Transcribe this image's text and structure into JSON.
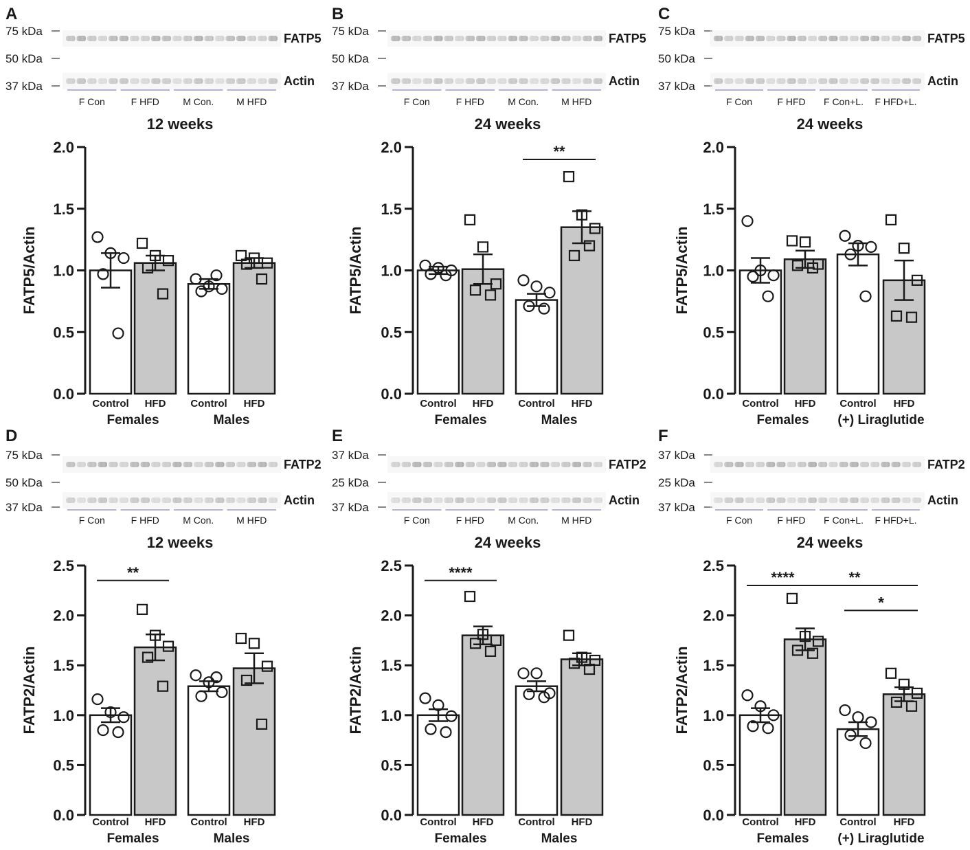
{
  "colors": {
    "control_fill": "#ffffff",
    "hfd_fill": "#c8c8c8",
    "ink": "#1a1a1a",
    "marker_bracket": "#9a9ac8"
  },
  "panels": [
    {
      "letter": "A",
      "title": "12 weeks",
      "protein": "FATP5",
      "blot_markers": [
        "75 kDa",
        "50 kDa",
        "37 kDa"
      ],
      "blot_bands": [
        "FATP5",
        "Actin"
      ],
      "lane_groups": [
        "F Con",
        "F HFD",
        "M Con.",
        "M HFD"
      ],
      "group_labels": [
        "Females",
        "Males"
      ]
    },
    {
      "letter": "B",
      "title": "24 weeks",
      "protein": "FATP5",
      "blot_markers": [
        "75 kDa",
        "50 kDa",
        "37 kDa"
      ],
      "blot_bands": [
        "FATP5",
        "Actin"
      ],
      "lane_groups": [
        "F Con",
        "F HFD",
        "M Con.",
        "M HFD"
      ],
      "group_labels": [
        "Females",
        "Males"
      ]
    },
    {
      "letter": "C",
      "title": "24 weeks",
      "protein": "FATP5",
      "blot_markers": [
        "75 kDa",
        "50 kDa",
        "37 kDa"
      ],
      "blot_bands": [
        "FATP5",
        "Actin"
      ],
      "lane_groups": [
        "F Con",
        "F HFD",
        "F Con+L.",
        "F HFD+L."
      ],
      "group_labels": [
        "Females",
        "(+) Liraglutide"
      ]
    },
    {
      "letter": "D",
      "title": "12 weeks",
      "protein": "FATP2",
      "blot_markers": [
        "75 kDa",
        "50 kDa",
        "37 kDa"
      ],
      "blot_bands": [
        "FATP2",
        "Actin"
      ],
      "lane_groups": [
        "F Con",
        "F HFD",
        "M Con.",
        "M HFD"
      ],
      "group_labels": [
        "Females",
        "Males"
      ]
    },
    {
      "letter": "E",
      "title": "24 weeks",
      "protein": "FATP2",
      "blot_markers": [
        "37 kDa",
        "25 kDa",
        "37 kDa"
      ],
      "blot_bands": [
        "FATP2",
        "Actin"
      ],
      "lane_groups": [
        "F Con",
        "F HFD",
        "M Con.",
        "M HFD"
      ],
      "group_labels": [
        "Females",
        "Males"
      ]
    },
    {
      "letter": "F",
      "title": "24 weeks",
      "protein": "FATP2",
      "blot_markers": [
        "37 kDa",
        "25 kDa",
        "37 kDa"
      ],
      "blot_bands": [
        "FATP2",
        "Actin"
      ],
      "lane_groups": [
        "F Con",
        "F HFD",
        "F Con+L.",
        "F HFD+L."
      ],
      "group_labels": [
        "Females",
        "(+) Liraglutide"
      ]
    }
  ],
  "chart_data": [
    {
      "panel": "A",
      "type": "bar",
      "title": "12 weeks",
      "ylabel": "FATP5/Actin",
      "ylim": [
        0,
        2.0
      ],
      "yticks": [
        "0.0",
        "0.5",
        "1.0",
        "1.5",
        "2.0"
      ],
      "categories": [
        "Control",
        "HFD",
        "Control",
        "HFD"
      ],
      "means": [
        1.0,
        1.06,
        0.89,
        1.06
      ],
      "sem": [
        0.14,
        0.06,
        0.04,
        0.04
      ],
      "points": [
        [
          1.27,
          1.14,
          1.1,
          0.97,
          0.49
        ],
        [
          1.22,
          1.12,
          1.08,
          1.02,
          0.81
        ],
        [
          0.93,
          0.87,
          0.85,
          0.83,
          0.96
        ],
        [
          1.12,
          1.1,
          1.06,
          1.05,
          0.93
        ]
      ],
      "significance": []
    },
    {
      "panel": "B",
      "type": "bar",
      "title": "24 weeks",
      "ylabel": "FATP5/Actin",
      "ylim": [
        0,
        2.0
      ],
      "yticks": [
        "0.0",
        "0.5",
        "1.0",
        "1.5",
        "2.0"
      ],
      "categories": [
        "Control",
        "HFD",
        "Control",
        "HFD"
      ],
      "means": [
        1.0,
        1.01,
        0.76,
        1.35
      ],
      "sem": [
        0.03,
        0.12,
        0.05,
        0.13
      ],
      "points": [
        [
          1.04,
          1.02,
          1.0,
          0.97,
          0.96
        ],
        [
          1.41,
          1.19,
          0.89,
          0.84,
          0.8
        ],
        [
          0.92,
          0.87,
          0.82,
          0.71,
          0.69
        ],
        [
          1.76,
          1.45,
          1.34,
          1.12,
          1.2
        ]
      ],
      "significance": [
        {
          "from": 2,
          "to": 3,
          "y": 1.9,
          "label": "**"
        }
      ]
    },
    {
      "panel": "C",
      "type": "bar",
      "title": "24 weeks",
      "ylabel": "FATP5/Actin",
      "ylim": [
        0,
        2.0
      ],
      "yticks": [
        "0.0",
        "0.5",
        "1.0",
        "1.5",
        "2.0"
      ],
      "categories": [
        "Control",
        "HFD",
        "Control",
        "HFD"
      ],
      "means": [
        1.0,
        1.09,
        1.13,
        0.92
      ],
      "sem": [
        0.1,
        0.07,
        0.09,
        0.16
      ],
      "points": [
        [
          1.4,
          1.0,
          0.96,
          0.95,
          0.79
        ],
        [
          1.24,
          1.23,
          1.05,
          1.04,
          1.02
        ],
        [
          1.28,
          1.2,
          1.19,
          1.13,
          0.79
        ],
        [
          1.41,
          1.18,
          0.92,
          0.63,
          0.62
        ]
      ],
      "significance": []
    },
    {
      "panel": "D",
      "type": "bar",
      "title": "12 weeks",
      "ylabel": "FATP2/Actin",
      "ylim": [
        0,
        2.5
      ],
      "yticks": [
        "0.0",
        "0.5",
        "1.0",
        "1.5",
        "2.0",
        "2.5"
      ],
      "categories": [
        "Control",
        "HFD",
        "Control",
        "HFD"
      ],
      "means": [
        1.0,
        1.68,
        1.29,
        1.47
      ],
      "sem": [
        0.07,
        0.13,
        0.05,
        0.15
      ],
      "points": [
        [
          1.16,
          1.03,
          0.98,
          0.85,
          0.83
        ],
        [
          2.06,
          1.8,
          1.69,
          1.58,
          1.29
        ],
        [
          1.4,
          1.33,
          1.23,
          1.19,
          1.38
        ],
        [
          1.77,
          1.72,
          1.49,
          1.35,
          0.91
        ]
      ],
      "significance": [
        {
          "from": 0,
          "to": 1,
          "y": 2.35,
          "label": "**"
        }
      ]
    },
    {
      "panel": "E",
      "type": "bar",
      "title": "24 weeks",
      "ylabel": "FATP2/Actin",
      "ylim": [
        0,
        2.5
      ],
      "yticks": [
        "0.0",
        "0.5",
        "1.0",
        "1.5",
        "2.0",
        "2.5"
      ],
      "categories": [
        "Control",
        "HFD",
        "Control",
        "HFD"
      ],
      "means": [
        1.0,
        1.8,
        1.29,
        1.56
      ],
      "sem": [
        0.06,
        0.09,
        0.05,
        0.06
      ],
      "points": [
        [
          1.17,
          1.1,
          0.99,
          0.86,
          0.83
        ],
        [
          2.19,
          1.81,
          1.75,
          1.72,
          1.64
        ],
        [
          1.42,
          1.42,
          1.22,
          1.21,
          1.18
        ],
        [
          1.8,
          1.58,
          1.55,
          1.52,
          1.46
        ]
      ],
      "significance": [
        {
          "from": 0,
          "to": 1,
          "y": 2.35,
          "label": "****"
        }
      ]
    },
    {
      "panel": "F",
      "type": "bar",
      "title": "24 weeks",
      "ylabel": "FATP2/Actin",
      "ylim": [
        0,
        2.5
      ],
      "yticks": [
        "0.0",
        "0.5",
        "1.0",
        "1.5",
        "2.0",
        "2.5"
      ],
      "categories": [
        "Control",
        "HFD",
        "Control",
        "HFD"
      ],
      "means": [
        1.0,
        1.76,
        0.86,
        1.21
      ],
      "sem": [
        0.07,
        0.11,
        0.07,
        0.07
      ],
      "points": [
        [
          1.2,
          1.09,
          1.0,
          0.89,
          0.87
        ],
        [
          2.17,
          1.79,
          1.74,
          1.65,
          1.62
        ],
        [
          1.05,
          0.98,
          0.93,
          0.8,
          0.72
        ],
        [
          1.42,
          1.31,
          1.22,
          1.13,
          1.09
        ]
      ],
      "significance": [
        {
          "from": 0,
          "to": 1,
          "y": 2.3,
          "label": "****"
        },
        {
          "from": 1,
          "to": 3,
          "y": 2.3,
          "label": "**"
        },
        {
          "from": 2,
          "to": 3,
          "y": 2.05,
          "label": "*"
        }
      ]
    }
  ]
}
